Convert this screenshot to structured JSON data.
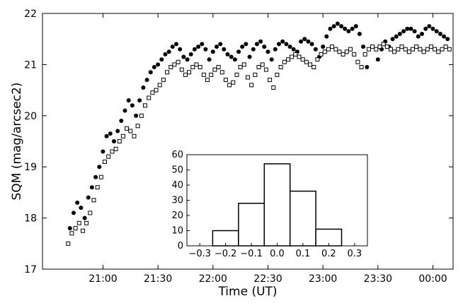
{
  "chart_data": [
    {
      "type": "scatter",
      "xlabel": "Time (UT)",
      "ylabel": "SQM (mag/arcsec2)",
      "x_ticks": [
        "21:00",
        "21:30",
        "22:00",
        "22:30",
        "23:00",
        "23:30",
        "00:00"
      ],
      "x_tick_minutes": [
        1260,
        1290,
        1320,
        1350,
        1380,
        1410,
        1440
      ],
      "xlim_minutes": [
        1227,
        1451
      ],
      "y_ticks": [
        "17",
        "18",
        "19",
        "20",
        "21",
        "22"
      ],
      "ylim": [
        17,
        22
      ],
      "series": [
        {
          "marker": "filled-circle",
          "color": "#000000",
          "x_minutes": [
            1242,
            1244,
            1246,
            1248,
            1250,
            1252,
            1254,
            1256,
            1258,
            1260,
            1262,
            1264,
            1266,
            1268,
            1270,
            1272,
            1274,
            1276,
            1278,
            1280,
            1282,
            1284,
            1286,
            1288,
            1290,
            1292,
            1294,
            1296,
            1298,
            1300,
            1302,
            1304,
            1306,
            1308,
            1310,
            1312,
            1314,
            1316,
            1318,
            1320,
            1322,
            1324,
            1326,
            1328,
            1330,
            1332,
            1334,
            1336,
            1338,
            1340,
            1342,
            1344,
            1346,
            1348,
            1350,
            1352,
            1354,
            1356,
            1358,
            1360,
            1362,
            1364,
            1366,
            1368,
            1370,
            1372,
            1374,
            1376,
            1378,
            1380,
            1382,
            1384,
            1386,
            1388,
            1390,
            1392,
            1394,
            1396,
            1398,
            1400,
            1402,
            1404,
            1410,
            1412,
            1414,
            1416,
            1418,
            1420,
            1422,
            1424,
            1426,
            1428,
            1430,
            1432,
            1434,
            1436,
            1438,
            1440,
            1442,
            1444,
            1446,
            1448
          ],
          "y": [
            17.8,
            18.1,
            18.3,
            18.2,
            18.0,
            18.4,
            18.6,
            18.8,
            19.0,
            19.3,
            19.6,
            19.65,
            19.5,
            19.7,
            19.9,
            20.1,
            20.3,
            20.2,
            20.0,
            20.3,
            20.55,
            20.7,
            20.85,
            20.95,
            21.0,
            21.1,
            21.2,
            21.25,
            21.35,
            21.4,
            21.3,
            21.15,
            21.1,
            21.2,
            21.3,
            21.35,
            21.4,
            21.3,
            21.1,
            21.25,
            21.35,
            21.4,
            21.3,
            21.2,
            21.15,
            21.1,
            21.25,
            21.35,
            21.4,
            21.15,
            21.3,
            21.4,
            21.45,
            21.35,
            21.25,
            21.1,
            21.3,
            21.4,
            21.45,
            21.4,
            21.35,
            21.3,
            21.25,
            21.45,
            21.5,
            21.45,
            21.4,
            21.3,
            21.15,
            21.35,
            21.55,
            21.7,
            21.75,
            21.8,
            21.75,
            21.7,
            21.65,
            21.7,
            21.75,
            21.6,
            21.35,
            20.95,
            21.1,
            21.3,
            21.45,
            21.35,
            21.5,
            21.55,
            21.6,
            21.65,
            21.7,
            21.7,
            21.65,
            21.55,
            21.6,
            21.7,
            21.75,
            21.7,
            21.65,
            21.6,
            21.55,
            21.5
          ]
        },
        {
          "marker": "open-square",
          "color": "#000000",
          "x_minutes": [
            1241,
            1243,
            1245,
            1247,
            1249,
            1251,
            1253,
            1255,
            1257,
            1259,
            1261,
            1263,
            1265,
            1267,
            1269,
            1271,
            1273,
            1275,
            1277,
            1279,
            1281,
            1283,
            1285,
            1287,
            1289,
            1291,
            1293,
            1295,
            1297,
            1299,
            1301,
            1303,
            1305,
            1307,
            1309,
            1311,
            1313,
            1315,
            1317,
            1319,
            1321,
            1323,
            1325,
            1327,
            1329,
            1331,
            1333,
            1335,
            1337,
            1339,
            1341,
            1343,
            1345,
            1347,
            1349,
            1351,
            1353,
            1355,
            1357,
            1359,
            1361,
            1363,
            1365,
            1367,
            1369,
            1371,
            1373,
            1375,
            1377,
            1379,
            1381,
            1383,
            1385,
            1387,
            1389,
            1391,
            1393,
            1395,
            1397,
            1399,
            1401,
            1403,
            1405,
            1407,
            1409,
            1411,
            1413,
            1415,
            1417,
            1419,
            1421,
            1423,
            1425,
            1427,
            1429,
            1431,
            1433,
            1435,
            1437,
            1439,
            1441,
            1443,
            1445,
            1447,
            1449
          ],
          "y": [
            17.5,
            17.7,
            17.8,
            17.9,
            17.75,
            17.9,
            18.1,
            18.35,
            18.6,
            18.8,
            19.1,
            19.2,
            19.3,
            19.35,
            19.5,
            19.6,
            19.75,
            19.7,
            19.6,
            19.8,
            20.0,
            20.2,
            20.35,
            20.45,
            20.5,
            20.6,
            20.7,
            20.85,
            20.95,
            21.0,
            21.05,
            20.9,
            20.8,
            20.85,
            20.95,
            21.0,
            20.95,
            20.8,
            20.7,
            20.8,
            20.9,
            20.95,
            20.85,
            20.7,
            20.6,
            20.65,
            20.8,
            20.95,
            21.0,
            20.75,
            20.6,
            20.8,
            20.95,
            21.0,
            20.9,
            20.7,
            20.55,
            20.8,
            20.95,
            21.05,
            21.1,
            21.15,
            21.2,
            21.15,
            21.1,
            21.05,
            21.0,
            20.95,
            21.1,
            21.2,
            21.25,
            21.3,
            21.35,
            21.3,
            21.25,
            21.2,
            21.25,
            21.3,
            21.2,
            21.05,
            20.95,
            21.2,
            21.3,
            21.35,
            21.3,
            21.35,
            21.4,
            21.35,
            21.3,
            21.25,
            21.3,
            21.35,
            21.3,
            21.25,
            21.3,
            21.35,
            21.3,
            21.25,
            21.3,
            21.35,
            21.3,
            21.25,
            21.3,
            21.35,
            21.3
          ]
        }
      ]
    },
    {
      "type": "bar",
      "role": "inset-histogram",
      "bin_edges": [
        -0.35,
        -0.25,
        -0.15,
        -0.05,
        0.05,
        0.15,
        0.25,
        0.35
      ],
      "values": [
        0,
        10,
        28,
        54,
        36,
        11,
        0
      ],
      "x_ticks": [
        "−0.3",
        "−0.2",
        "−0.1",
        "0.0",
        "0.1",
        "0.2",
        "0.3"
      ],
      "x_tick_values": [
        -0.3,
        -0.2,
        -0.1,
        0.0,
        0.1,
        0.2,
        0.3
      ],
      "xlim": [
        -0.35,
        0.35
      ],
      "y_ticks": [
        "0",
        "10",
        "20",
        "30",
        "40",
        "50",
        "60"
      ],
      "ylim": [
        0,
        60
      ]
    }
  ]
}
